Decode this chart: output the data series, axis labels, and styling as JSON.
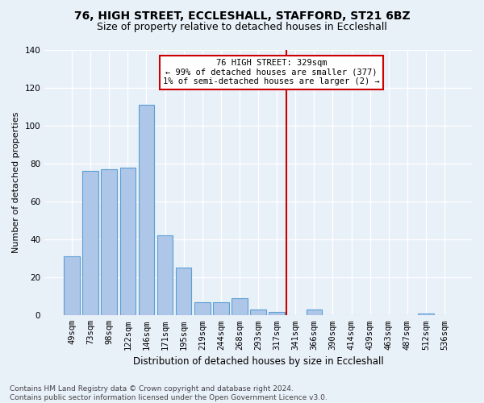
{
  "title": "76, HIGH STREET, ECCLESHALL, STAFFORD, ST21 6BZ",
  "subtitle": "Size of property relative to detached houses in Eccleshall",
  "xlabel": "Distribution of detached houses by size in Eccleshall",
  "ylabel": "Number of detached properties",
  "bar_color": "#aec6e8",
  "bar_edge_color": "#5a9fd4",
  "background_color": "#e8f0f8",
  "grid_color": "#ffffff",
  "categories": [
    "49sqm",
    "73sqm",
    "98sqm",
    "122sqm",
    "146sqm",
    "171sqm",
    "195sqm",
    "219sqm",
    "244sqm",
    "268sqm",
    "293sqm",
    "317sqm",
    "341sqm",
    "366sqm",
    "390sqm",
    "414sqm",
    "439sqm",
    "463sqm",
    "487sqm",
    "512sqm",
    "536sqm"
  ],
  "values": [
    31,
    76,
    77,
    78,
    111,
    42,
    25,
    7,
    7,
    9,
    3,
    2,
    0,
    3,
    0,
    0,
    0,
    0,
    0,
    1,
    0
  ],
  "marker_index": 11,
  "annotation_text": "76 HIGH STREET: 329sqm\n← 99% of detached houses are smaller (377)\n1% of semi-detached houses are larger (2) →",
  "annotation_box_color": "#ffffff",
  "annotation_box_edge_color": "#cc0000",
  "vline_color": "#cc0000",
  "footer": "Contains HM Land Registry data © Crown copyright and database right 2024.\nContains public sector information licensed under the Open Government Licence v3.0.",
  "ylim": [
    0,
    140
  ],
  "yticks": [
    0,
    20,
    40,
    60,
    80,
    100,
    120,
    140
  ],
  "title_fontsize": 10,
  "subtitle_fontsize": 9,
  "ylabel_fontsize": 8,
  "xlabel_fontsize": 8.5,
  "tick_fontsize": 7.5,
  "footer_fontsize": 6.5
}
